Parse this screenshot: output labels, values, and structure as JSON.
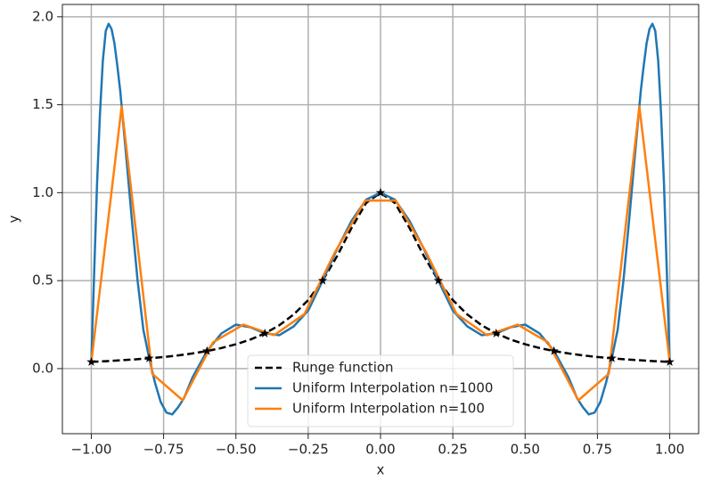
{
  "chart_data": {
    "type": "line",
    "xlabel": "x",
    "ylabel": "y",
    "xlim": [
      -1.1,
      1.1
    ],
    "ylim": [
      -0.37,
      2.07
    ],
    "xticks": [
      {
        "value": -1,
        "label": "−1.00"
      },
      {
        "value": -0.75,
        "label": "−0.75"
      },
      {
        "value": -0.5,
        "label": "−0.50"
      },
      {
        "value": -0.25,
        "label": "−0.25"
      },
      {
        "value": 0,
        "label": "0.00"
      },
      {
        "value": 0.25,
        "label": "0.25"
      },
      {
        "value": 0.5,
        "label": "0.50"
      },
      {
        "value": 0.75,
        "label": "0.75"
      },
      {
        "value": 1,
        "label": "1.00"
      }
    ],
    "yticks": [
      {
        "value": 0,
        "label": "0.0"
      },
      0.5,
      {
        "value": 1,
        "label": "1.0"
      },
      1.5,
      {
        "value": 2,
        "label": "2.0"
      }
    ],
    "grid": true,
    "legend": "lower center",
    "series": [
      {
        "name": "Runge function",
        "color": "#000000",
        "dash": true,
        "x": [
          -1,
          -0.95,
          -0.9,
          -0.85,
          -0.8,
          -0.75,
          -0.7,
          -0.65,
          -0.6,
          -0.55,
          -0.5,
          -0.45,
          -0.4,
          -0.35,
          -0.3,
          -0.25,
          -0.2,
          -0.15,
          -0.1,
          -0.05,
          0,
          0.05,
          0.1,
          0.15,
          0.2,
          0.25,
          0.3,
          0.35,
          0.4,
          0.45,
          0.5,
          0.55,
          0.6,
          0.65,
          0.7,
          0.75,
          0.8,
          0.85,
          0.9,
          0.95,
          1
        ],
        "values": [
          0.038,
          0.042,
          0.047,
          0.052,
          0.059,
          0.066,
          0.075,
          0.086,
          0.1,
          0.117,
          0.138,
          0.165,
          0.2,
          0.246,
          0.308,
          0.39,
          0.5,
          0.64,
          0.8,
          0.941,
          1,
          0.941,
          0.8,
          0.64,
          0.5,
          0.39,
          0.308,
          0.246,
          0.2,
          0.165,
          0.138,
          0.117,
          0.1,
          0.086,
          0.075,
          0.066,
          0.059,
          0.052,
          0.047,
          0.042,
          0.038
        ]
      },
      {
        "name": "Uniform Interpolation n=1000",
        "color": "#1f77b4",
        "x": [
          -1,
          -0.99,
          -0.98,
          -0.97,
          -0.96,
          -0.95,
          -0.94,
          -0.93,
          -0.92,
          -0.91,
          -0.9,
          -0.88,
          -0.86,
          -0.84,
          -0.82,
          -0.8,
          -0.78,
          -0.76,
          -0.74,
          -0.72,
          -0.7,
          -0.68,
          -0.65,
          -0.6,
          -0.55,
          -0.5,
          -0.45,
          -0.4,
          -0.35,
          -0.3,
          -0.25,
          -0.2,
          -0.15,
          -0.1,
          -0.05,
          0,
          0.05,
          0.1,
          0.15,
          0.2,
          0.25,
          0.3,
          0.35,
          0.4,
          0.45,
          0.5,
          0.55,
          0.6,
          0.65,
          0.68,
          0.7,
          0.72,
          0.74,
          0.76,
          0.78,
          0.8,
          0.82,
          0.84,
          0.86,
          0.88,
          0.9,
          0.91,
          0.92,
          0.93,
          0.94,
          0.95,
          0.96,
          0.97,
          0.98,
          0.99,
          1
        ],
        "values": [
          0.038,
          0.55,
          1.05,
          1.45,
          1.75,
          1.92,
          1.96,
          1.93,
          1.85,
          1.72,
          1.58,
          1.22,
          0.85,
          0.5,
          0.22,
          0.06,
          -0.08,
          -0.19,
          -0.25,
          -0.26,
          -0.22,
          -0.17,
          -0.05,
          0.1,
          0.2,
          0.25,
          0.235,
          0.2,
          0.19,
          0.24,
          0.33,
          0.5,
          0.68,
          0.84,
          0.96,
          1,
          0.96,
          0.84,
          0.68,
          0.5,
          0.33,
          0.24,
          0.19,
          0.2,
          0.235,
          0.25,
          0.2,
          0.1,
          -0.05,
          -0.17,
          -0.22,
          -0.26,
          -0.25,
          -0.19,
          -0.08,
          0.06,
          0.22,
          0.5,
          0.85,
          1.22,
          1.58,
          1.72,
          1.85,
          1.93,
          1.96,
          1.92,
          1.75,
          1.45,
          1.05,
          0.55,
          0.038
        ]
      },
      {
        "name": "Uniform Interpolation n=100",
        "color": "#ff7f0e",
        "x": [
          -1,
          -0.895,
          -0.789,
          -0.684,
          -0.579,
          -0.474,
          -0.368,
          -0.263,
          -0.158,
          -0.053,
          0.053,
          0.158,
          0.263,
          0.368,
          0.474,
          0.579,
          0.684,
          0.789,
          0.895,
          1
        ],
        "values": [
          0.038,
          1.49,
          -0.03,
          -0.18,
          0.15,
          0.25,
          0.19,
          0.31,
          0.66,
          0.955,
          0.955,
          0.66,
          0.31,
          0.19,
          0.25,
          0.15,
          -0.18,
          -0.03,
          1.49,
          0.038
        ]
      }
    ],
    "nodes": {
      "color": "#000000",
      "x": [
        -1,
        -0.8,
        -0.6,
        -0.4,
        -0.2,
        0,
        0.2,
        0.4,
        0.6,
        0.8,
        1
      ],
      "values": [
        0.038,
        0.059,
        0.1,
        0.2,
        0.5,
        1,
        0.5,
        0.2,
        0.1,
        0.059,
        0.038
      ]
    }
  }
}
